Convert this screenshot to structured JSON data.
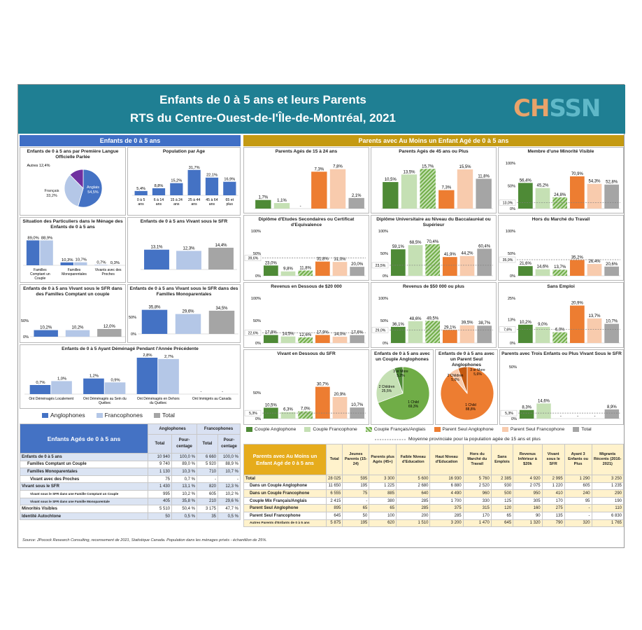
{
  "header": {
    "title": "Enfants de 0 à 5 ans et leurs Parents",
    "subtitle": "RTS du Centre-Ouest-de-l'Île-de-Montréal, 2021",
    "logo": "CHSSN"
  },
  "sections": {
    "left": "Enfants de 0 à 5 ans",
    "right": "Parents avec Au Moins un Enfant Agé de 0 à 5 ans"
  },
  "colors": {
    "header": "#1f7f93",
    "left_accent": "#3f6fc6",
    "right_accent": "#c49a12",
    "anglophone": "#4472c4",
    "francophone": "#b4c7e7",
    "total_grey": "#a5a5a5",
    "couple_anglo": "#4e8a36",
    "couple_franco": "#c5e0b4",
    "couple_mix": "#70ad47",
    "parent_seul_anglo": "#ed7d31",
    "parent_seul_franco": "#f8cbad",
    "logo_orange": "#e9a36a",
    "logo_teal": "#5fb8c8",
    "ref_line": "#7f7f7f"
  },
  "chart_data": [
    {
      "type": "pie",
      "title": "Enfants de 0 à 5 ans par Première Langue Officielle Parlée",
      "categories": [
        "Anglais",
        "Français",
        "Autres"
      ],
      "values": [
        54.5,
        33.2,
        12.4
      ],
      "labels": [
        "Anglais 54,5%",
        "Français 33,2%",
        "Autres 12,4%"
      ]
    },
    {
      "type": "bar",
      "title": "Population par Age",
      "categories": [
        "0 à 5 ans",
        "6 à 14 ans",
        "15 à 24 ans",
        "25 à 44 ans",
        "45 à 64 ans",
        "65 et plus"
      ],
      "values": [
        5.4,
        8.8,
        15.2,
        31.7,
        22.1,
        16.9
      ],
      "labels": [
        "5,4%",
        "8,8%",
        "15,2%",
        "31,7%",
        "22,1%",
        "16,9%"
      ],
      "ylim": [
        0,
        35
      ]
    },
    {
      "type": "bar",
      "title": "Situation des Particuliers dans le Ménage des Enfants de 0 à 5 ans",
      "categories": [
        "Familles Comptant un Couple",
        "Familles Monoparentales",
        "Vivants avec des Proches"
      ],
      "series": [
        {
          "name": "Anglophones",
          "values": [
            89.0,
            10.3,
            0.7
          ],
          "labels": [
            "89,0%",
            "10,3%",
            "0,7%"
          ]
        },
        {
          "name": "Francophones",
          "values": [
            88.9,
            10.7,
            0.3
          ],
          "labels": [
            "88,9%",
            "10,7%",
            "0,3%"
          ]
        }
      ],
      "ylim": [
        0,
        100
      ]
    },
    {
      "type": "bar",
      "title": "Enfants de 0 à 5 ans Vivant sous le SFR",
      "categories": [
        "Anglophones",
        "Francophones",
        "Total"
      ],
      "values": [
        13.1,
        12.3,
        14.4
      ],
      "labels": [
        "13,1%",
        "12,3%",
        "14,4%"
      ],
      "ylim": [
        0,
        25
      ]
    },
    {
      "type": "bar",
      "title": "Enfants de 0 à 5 ans Vivant sous le SFR dans des Familles Comptant un couple",
      "categories": [
        "Anglophones",
        "Francophones",
        "Total"
      ],
      "values": [
        10.2,
        10.2,
        12.0
      ],
      "labels": [
        "10,2%",
        "10,2%",
        "12,0%"
      ],
      "ylim": [
        0,
        50
      ],
      "ytick": "50%",
      "y0": "0%"
    },
    {
      "type": "bar",
      "title": "Enfants de 0 à 5 ans Vivant sous le SFR dans des Familles Monoparentales",
      "categories": [
        "Anglophones",
        "Francophones",
        "Total"
      ],
      "values": [
        35.8,
        29.6,
        34.5
      ],
      "labels": [
        "35,8%",
        "29,6%",
        "34,5%"
      ],
      "ylim": [
        0,
        50
      ],
      "ytick": "50%",
      "y0": "0%"
    },
    {
      "type": "bar",
      "title": "Enfants de 0 à 5 Ayant Déménagé Pendant l'Année Précédente",
      "categories": [
        "Ont Déménagés Localement",
        "Ont Déménagés au Sein du Québec",
        "Ont Déménagés en Dehors du Québec",
        "Ont Immigrés au Canada"
      ],
      "series": [
        {
          "name": "Anglophones",
          "values": [
            0.7,
            1.2,
            2.8,
            0
          ],
          "labels": [
            "0,7%",
            "1,2%",
            "2,8%",
            "-"
          ]
        },
        {
          "name": "Francophones",
          "values": [
            1.0,
            0.9,
            2.7,
            0
          ],
          "labels": [
            "1,0%",
            "0,9%",
            "2,7%",
            "-"
          ]
        }
      ],
      "ylim": [
        0,
        2.8
      ]
    },
    {
      "type": "bar",
      "title": "Parents Agés de 15 à 24 ans",
      "values": [
        1.7,
        1.1,
        0,
        7.3,
        7.8,
        2.1
      ],
      "labels": [
        "1,7%",
        "1,1%",
        "-",
        "7,3%",
        "7,8%",
        "2,1%"
      ],
      "ylim": [
        0,
        9
      ]
    },
    {
      "type": "bar",
      "title": "Parents Agés de 45 ans ou Plus",
      "values": [
        10.5,
        13.5,
        15.7,
        7.3,
        15.5,
        11.8
      ],
      "labels": [
        "10,5%",
        "13,5%",
        "15,7%",
        "7,3%",
        "15,5%",
        "11,8%"
      ],
      "ylim": [
        0,
        18
      ]
    },
    {
      "type": "bar",
      "title": "Membre d'une Minorité Visible",
      "values": [
        56.4,
        45.2,
        24.8,
        70.9,
        54.3,
        52.8
      ],
      "labels": [
        "56,4%",
        "45,2%",
        "24,8%",
        "70,9%",
        "54,3%",
        "52,8%"
      ],
      "ylim": [
        0,
        100
      ],
      "ref": 13.0,
      "ref_label": "13,0%",
      "ytick": "50%",
      "ytop": "100%",
      "y0": "0%"
    },
    {
      "type": "bar",
      "title": "Diplôme d'Etudes Secondaires ou Certificat d'Equivalence",
      "values": [
        23.0,
        9.8,
        11.8,
        31.8,
        31.0,
        20.0
      ],
      "labels": [
        "23,0%",
        "9,8%",
        "11,8%",
        "31,8%",
        "31,0%",
        "20,0%"
      ],
      "ylim": [
        0,
        100
      ],
      "ref": 39.6,
      "ref_label": "39,6%",
      "ytick": "50%",
      "ytop": "100%",
      "y0": "0%"
    },
    {
      "type": "bar",
      "title": "Diplôme Universitaire au Niveau du Baccalauréat ou Supérieur",
      "values": [
        59.1,
        68.5,
        70.4,
        41.9,
        44.2,
        60.4
      ],
      "labels": [
        "59,1%",
        "68,5%",
        "70,4%",
        "41,9%",
        "44,2%",
        "60,4%"
      ],
      "ylim": [
        0,
        100
      ],
      "ref": 23.5,
      "ref_label": "23,5%",
      "ytick": "50%",
      "ytop": "100%",
      "y0": "0%"
    },
    {
      "type": "bar",
      "title": "Hors du Marché du Travail",
      "values": [
        21.6,
        14.6,
        13.7,
        35.2,
        26.4,
        20.6
      ],
      "labels": [
        "21,6%",
        "14,6%",
        "13,7%",
        "35,2%",
        "26,4%",
        "20,6%"
      ],
      "ylim": [
        0,
        100
      ],
      "ref": 35.9,
      "ref_label": "35,9%",
      "ytick": "50%",
      "ytop": "100%",
      "y0": "0%"
    },
    {
      "type": "bar",
      "title": "Revenus en Dessous de $20 000",
      "values": [
        17.8,
        14.5,
        12.6,
        17.9,
        14.0,
        17.6
      ],
      "labels": [
        "17,8%",
        "14,5%",
        "12,6%",
        "17,9%",
        "14,0%",
        "17,6%"
      ],
      "ylim": [
        0,
        100
      ],
      "ref": 22.6,
      "ref_label": "22,6%",
      "ytick": "50%",
      "ytop": "100%",
      "y0": "0%"
    },
    {
      "type": "bar",
      "title": "Revenus de $50 000 ou plus",
      "values": [
        36.1,
        48.6,
        49.5,
        29.1,
        39.5,
        38.7
      ],
      "labels": [
        "36,1%",
        "48,6%",
        "49,5%",
        "29,1%",
        "39,5%",
        "38,7%"
      ],
      "ylim": [
        0,
        100
      ],
      "ref": 29.0,
      "ref_label": "29,0%",
      "ytick": "50%",
      "ytop": "100%",
      "y0": "0%"
    },
    {
      "type": "bar",
      "title": "Sans Emploi",
      "values": [
        10.2,
        9.0,
        6.0,
        20.9,
        13.7,
        10.7
      ],
      "labels": [
        "10,2%",
        "9,0%",
        "6,0%",
        "20,9%",
        "13,7%",
        "10,7%"
      ],
      "ylim": [
        0,
        25
      ],
      "ref": 7.6,
      "ref_label": "7,6%",
      "ytick": "13%",
      "ytop": "25%",
      "y0": "0%"
    },
    {
      "type": "bar",
      "title": "Vivant en Dessous du SFR",
      "values": [
        10.5,
        6.3,
        7.0,
        30.7,
        20.9,
        10.7
      ],
      "labels": [
        "10,5%",
        "6,3%",
        "7,0%",
        "30,7%",
        "20,9%",
        "10,7%"
      ],
      "ylim": [
        0,
        50
      ],
      "ref": 5.3,
      "ref_label": "5,3%",
      "ytick": "50%",
      "y0": "0%"
    },
    {
      "type": "pie",
      "title": "Enfants de 0 à 5 ans avec un Couple Anglophones",
      "values": [
        69.3,
        25.5,
        5.2
      ],
      "labels": [
        "1 Child 69,3%",
        "2 Children 25,5%",
        "3 or More 5,2%"
      ]
    },
    {
      "type": "pie",
      "title": "Enfants de 0 à 5 ans avec un Parent Seul Anglophones",
      "values": [
        88.8,
        5.6,
        5.6
      ],
      "labels": [
        "1 Child 88,8%",
        "2 Children 5,6%",
        "3 or More 5,6%"
      ]
    },
    {
      "type": "bar",
      "title": "Parents avec Trois Enfants ou Plus Vivant Sous le SFR",
      "values": [
        8.3,
        14.6,
        0,
        0,
        0,
        8.9
      ],
      "labels": [
        "8,3%",
        "14,6%",
        "-",
        "-",
        "-",
        "8,9%"
      ],
      "ylim": [
        0,
        50
      ],
      "ref": 5.3,
      "ref_label": "5,3%",
      "ytop": "50%",
      "y0": "0%"
    }
  ],
  "legends": {
    "left": [
      "Anglophones",
      "Francophones",
      "Total"
    ],
    "right": [
      "Couple Anglophone",
      "Couple Francophone",
      "Couple Français/Anglais",
      "Parent Seul Anglophone",
      "Parent Seul Francophone",
      "Total"
    ],
    "ref_line": "Moyenne provinciale pour la population agée de 15 ans et plus"
  },
  "left_table": {
    "title": "Enfants Agés de 0 à 5 ans",
    "groups": [
      "Anglophones",
      "Francophones"
    ],
    "subheads": [
      "Total",
      "Pour-centage",
      "Total",
      "Pour-centage"
    ],
    "rows": [
      [
        "Enfants de 0 à 5 ans",
        "10 940",
        "100,0 %",
        "6 660",
        "100,0 %"
      ],
      [
        "Familles Comptant un Couple",
        "9 740",
        "89,0 %",
        "5 920",
        "88,9 %"
      ],
      [
        "Familles Monoparentales",
        "1 130",
        "10,3 %",
        "710",
        "10,7 %"
      ],
      [
        "Vivant avec des Proches",
        "75",
        "0,7 %",
        "-",
        "-"
      ],
      [
        "Vivant sous le SFR",
        "1 430",
        "13,1 %",
        "820",
        "12,3 %"
      ],
      [
        "Vivant sous le SFR dans une Famille Comptant un Couple",
        "995",
        "10,2 %",
        "605",
        "10,2 %"
      ],
      [
        "Vivant sous le SFR dans une Famille Monoparentale",
        "405",
        "35,8 %",
        "210",
        "29,6 %"
      ],
      [
        "Minorités Visibles",
        "5 510",
        "50,4 %",
        "3 175",
        "47,7 %"
      ],
      [
        "Identité Autochtone",
        "50",
        "0,5 %",
        "35",
        "0,5 %"
      ]
    ]
  },
  "right_table": {
    "title": "Parents avec Au Moins un Enfant Agé de 0 à 5 ans",
    "headers": [
      "Total",
      "Jeunes Parents (15-24)",
      "Parents plus Agés (45+)",
      "Faible Niveau d'Education",
      "Haut Niveau d'Education",
      "Hors du Marché du Travail",
      "Sans Emplois",
      "Revenus Inférieur à $20k",
      "Vivant sous le SFR",
      "Ayant 3 Enfants ou Plus",
      "Migrants Récents (2016-2021)"
    ],
    "rows": [
      [
        "Total",
        "28 025",
        "595",
        "3 300",
        "5 600",
        "16 930",
        "5 760",
        "2 385",
        "4 920",
        "2 995",
        "1 290",
        "3 250"
      ],
      [
        "Dans un Couple Anglophone",
        "11 650",
        "195",
        "1 225",
        "2 680",
        "6 880",
        "2 520",
        "930",
        "2 075",
        "1 220",
        "605",
        "1 235"
      ],
      [
        "Dans un Couple Francophone",
        "6 555",
        "75",
        "885",
        "640",
        "4 490",
        "960",
        "500",
        "950",
        "410",
        "240",
        "290"
      ],
      [
        "Couple Mix Français/Anglais",
        "2 415",
        "-",
        "380",
        "285",
        "1 700",
        "330",
        "125",
        "305",
        "170",
        "95",
        "190"
      ],
      [
        "Parent Seul Anglophone",
        "895",
        "65",
        "65",
        "285",
        "375",
        "315",
        "120",
        "160",
        "275",
        "-",
        "110"
      ],
      [
        "Parent Seul Francophone",
        "645",
        "50",
        "100",
        "200",
        "285",
        "170",
        "65",
        "90",
        "135",
        "-",
        "6 830"
      ],
      [
        "Autres Parents d'Enfants de 0 à 5 ans",
        "5 875",
        "195",
        "620",
        "1 510",
        "3 200",
        "1 470",
        "645",
        "1 320",
        "790",
        "320",
        "1 765"
      ]
    ]
  },
  "source": "Source: JPocock Research Consulting, recensement de 2021, Statistique Canada. Population dans les ménages privés - échantillon de 25%."
}
